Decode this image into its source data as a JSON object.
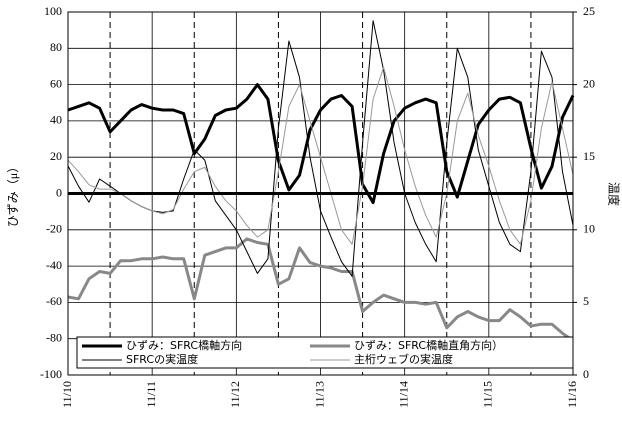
{
  "chart_data": {
    "type": "line",
    "ylabel": "ひずみ（μ）",
    "y2label": "温度",
    "x": [
      0,
      0.125,
      0.25,
      0.375,
      0.5,
      0.625,
      0.75,
      0.875,
      1,
      1.125,
      1.25,
      1.375,
      1.5,
      1.625,
      1.75,
      1.875,
      2,
      2.125,
      2.25,
      2.375,
      2.5,
      2.625,
      2.75,
      2.875,
      3,
      3.125,
      3.25,
      3.375,
      3.5,
      3.625,
      3.75,
      3.875,
      4,
      4.125,
      4.25,
      4.375,
      4.5,
      4.625,
      4.75,
      4.875,
      5,
      5.125,
      5.25,
      5.375,
      5.5,
      5.625,
      5.75,
      5.875,
      6
    ],
    "xlim": [
      0,
      6
    ],
    "xticks": [
      {
        "value": 0,
        "label": "11/10"
      },
      {
        "value": 1,
        "label": "11/11"
      },
      {
        "value": 2,
        "label": "11/12"
      },
      {
        "value": 3,
        "label": "11/13"
      },
      {
        "value": 4,
        "label": "11/14"
      },
      {
        "value": 5,
        "label": "11/15"
      },
      {
        "value": 6,
        "label": "11/16"
      }
    ],
    "ylim": [
      -100,
      100
    ],
    "yticks": [
      -100,
      -80,
      -60,
      -40,
      -20,
      0,
      20,
      40,
      60,
      80,
      100
    ],
    "y2lim": [
      0,
      25
    ],
    "y2ticks": [
      0,
      5,
      10,
      15,
      20,
      25
    ],
    "vlines": [
      0.5,
      1.5,
      2.5,
      3.5,
      4.5,
      5.5
    ],
    "hlines": [
      0
    ],
    "grid": true,
    "legend": "bottom",
    "series": [
      {
        "name": "ひずみ：SFRC橋軸方向",
        "color": "#000000",
        "width": 3,
        "axis": "y",
        "values": [
          46,
          48,
          50,
          47,
          34,
          40,
          46,
          49,
          47,
          46,
          46,
          44,
          22,
          30,
          43,
          46,
          47,
          52,
          60,
          52,
          18,
          2,
          10,
          35,
          46,
          52,
          54,
          48,
          5,
          -5,
          22,
          40,
          47,
          50,
          52,
          50,
          12,
          -2,
          18,
          38,
          46,
          52,
          53,
          50,
          25,
          3,
          15,
          42,
          54
        ]
      },
      {
        "name": "ひずみ：SFRC橋軸直角方向）",
        "color": "#888888",
        "width": 3,
        "axis": "y",
        "values": [
          -57,
          -58,
          -47,
          -43,
          -44,
          -37,
          -37,
          -36,
          -36,
          -35,
          -36,
          -36,
          -58,
          -34,
          -32,
          -30,
          -30,
          -25,
          -27,
          -28,
          -50,
          -47,
          -30,
          -38,
          -40,
          -41,
          -43,
          -43,
          -65,
          -60,
          -56,
          -58,
          -60,
          -60,
          -61,
          -60,
          -74,
          -68,
          -65,
          -68,
          -70,
          -70,
          -64,
          -68,
          -73,
          -72,
          -72,
          -77,
          -81
        ]
      },
      {
        "name": "SFRCの実温度",
        "color": "#000000",
        "width": 1,
        "axis": "y2",
        "values": [
          14.4,
          13,
          11.9,
          13.5,
          13,
          12.5,
          12,
          11.6,
          11.3,
          11.2,
          11.3,
          13.5,
          15.5,
          14.8,
          12,
          11,
          10,
          8.5,
          7,
          8,
          17,
          23,
          20.5,
          15,
          11.3,
          9.5,
          7.8,
          6.8,
          16,
          24.4,
          21,
          16,
          12.5,
          10.5,
          9,
          7.8,
          16,
          22.5,
          20.5,
          15.5,
          13,
          10.5,
          9,
          8.5,
          14,
          22.3,
          20.5,
          14,
          10.3
        ]
      },
      {
        "name": "主桁ウェブの実温度",
        "color": "#999999",
        "width": 1,
        "axis": "y2",
        "values": [
          14.8,
          14,
          13.1,
          12.8,
          12.8,
          12.5,
          12,
          11.6,
          11.3,
          11.1,
          11.4,
          12.8,
          14,
          14.3,
          13,
          12,
          11.3,
          10.3,
          9.5,
          10,
          14,
          18.5,
          20,
          17.5,
          15,
          12.5,
          10,
          9,
          13,
          19,
          21.2,
          18.5,
          15.5,
          13,
          11,
          9.5,
          12.5,
          17.5,
          19.4,
          16.5,
          14.4,
          12,
          10,
          9,
          12,
          17,
          20.2,
          17,
          13.8
        ]
      }
    ]
  }
}
